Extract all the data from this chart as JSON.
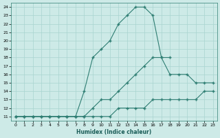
{
  "xlabel": "Humidex (Indice chaleur)",
  "bg_color": "#cdeae7",
  "grid_color": "#a8d4d0",
  "line_color": "#2e7d72",
  "xlim_min": -0.5,
  "xlim_max": 23.5,
  "ylim_min": 10.5,
  "ylim_max": 24.5,
  "xticks": [
    0,
    1,
    2,
    3,
    4,
    5,
    6,
    7,
    8,
    9,
    10,
    11,
    12,
    13,
    14,
    15,
    16,
    17,
    18,
    19,
    20,
    21,
    22,
    23
  ],
  "yticks": [
    11,
    12,
    13,
    14,
    15,
    16,
    17,
    18,
    19,
    20,
    21,
    22,
    23,
    24
  ],
  "line1_x": [
    0,
    1,
    2,
    3,
    4,
    5,
    6,
    7,
    8,
    9,
    10,
    11,
    12,
    13,
    14,
    15,
    16,
    17,
    18,
    19,
    20,
    21,
    22,
    23
  ],
  "line1_y": [
    11,
    11,
    11,
    11,
    11,
    11,
    11,
    11,
    11,
    11,
    11,
    11,
    12,
    12,
    12,
    12,
    13,
    13,
    13,
    13,
    13,
    13,
    14,
    14
  ],
  "line2_x": [
    0,
    1,
    2,
    3,
    4,
    5,
    6,
    7,
    8,
    9,
    10,
    11,
    12,
    13,
    14,
    15,
    16,
    17,
    18,
    19,
    20,
    21,
    22,
    23
  ],
  "line2_y": [
    11,
    11,
    11,
    11,
    11,
    11,
    11,
    11,
    11,
    12,
    13,
    13,
    14,
    15,
    16,
    17,
    18,
    18,
    16,
    16,
    16,
    15,
    15,
    15
  ],
  "line3_x": [
    0,
    1,
    2,
    3,
    4,
    5,
    6,
    7,
    8,
    9,
    10,
    11,
    12,
    13,
    14,
    15,
    16,
    17,
    18
  ],
  "line3_y": [
    11,
    11,
    11,
    11,
    11,
    11,
    11,
    11,
    14,
    18,
    19,
    20,
    22,
    23,
    24,
    24,
    23,
    18,
    18
  ]
}
